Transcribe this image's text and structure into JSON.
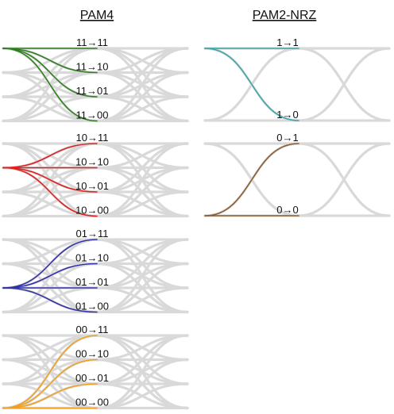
{
  "headers": {
    "pam4": "PAM4",
    "nrz": "PAM2-NRZ"
  },
  "colors": {
    "eye_gray": "#d9d9d9",
    "pam4_11": "#2e7d1e",
    "pam4_10": "#e01f1f",
    "pam4_01": "#3232a8",
    "pam4_00": "#f0a020",
    "nrz_1": "#3aa6a6",
    "nrz_0": "#8b5a2b"
  },
  "pam4_groups": [
    {
      "source": "11",
      "color_key": "pam4_11",
      "labels": [
        "11→11",
        "11→10",
        "11→01",
        "11→00"
      ],
      "target_levels": [
        3,
        2,
        1,
        0
      ]
    },
    {
      "source": "10",
      "color_key": "pam4_10",
      "labels": [
        "10→11",
        "10→10",
        "10→01",
        "10→00"
      ],
      "target_levels": [
        3,
        2,
        1,
        0
      ]
    },
    {
      "source": "01",
      "color_key": "pam4_01",
      "labels": [
        "01→11",
        "01→10",
        "01→01",
        "01→00"
      ],
      "target_levels": [
        3,
        2,
        1,
        0
      ]
    },
    {
      "source": "00",
      "color_key": "pam4_00",
      "labels": [
        "00→11",
        "00→10",
        "00→01",
        "00→00"
      ],
      "target_levels": [
        3,
        2,
        1,
        0
      ]
    }
  ],
  "nrz_groups": [
    {
      "source": "1",
      "color_key": "nrz_1",
      "labels": [
        "1→1",
        "1→0"
      ],
      "target_levels": [
        1,
        0
      ]
    },
    {
      "source": "0",
      "color_key": "nrz_0",
      "labels": [
        "0→1",
        "0→0"
      ],
      "target_levels": [
        1,
        0
      ]
    }
  ]
}
